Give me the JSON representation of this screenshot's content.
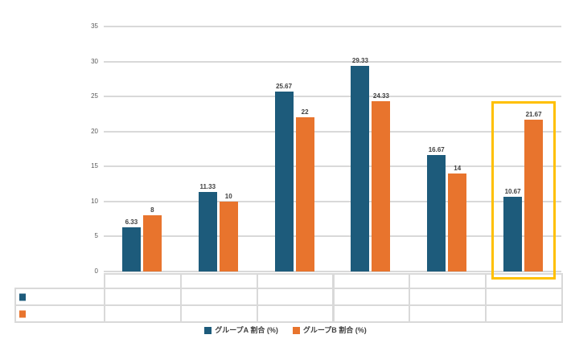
{
  "chart_data": {
    "type": "bar",
    "title": "",
    "categories": [
      "",
      "",
      "",
      "",
      "",
      ""
    ],
    "series": [
      {
        "name": "グループA 割合 (%)",
        "color": "#1d5b7b",
        "values": [
          6.33,
          11.33,
          25.67,
          29.33,
          16.67,
          10.67
        ],
        "labels": [
          "6.33",
          "11.33",
          "25.67",
          "29.33",
          "16.67",
          "10.67"
        ]
      },
      {
        "name": "グループB 割合 (%)",
        "color": "#e8742d",
        "values": [
          8,
          10,
          22,
          24.33,
          14,
          21.67
        ],
        "labels": [
          "8",
          "10",
          "22",
          "24.33",
          "14",
          "21.67"
        ]
      }
    ],
    "ylim": [
      0,
      35
    ],
    "yticks": [
      "35",
      "30",
      "25",
      "20",
      "15",
      "10",
      "5",
      "0"
    ],
    "grid": true,
    "legend_position": "bottom",
    "highlight": {
      "group_index": 5,
      "color": "#ffc000"
    },
    "data_table": {
      "shown": true,
      "header_cells": [
        "",
        "",
        "",
        "",
        "",
        ""
      ],
      "row_cells_empty": true
    }
  },
  "legend": {
    "items": [
      {
        "label": "グループA 割合 (%)",
        "color": "#1d5b7b"
      },
      {
        "label": "グループB 割合 (%)",
        "color": "#e8742d"
      }
    ]
  },
  "colors": {
    "background": "#ffffff",
    "gridline": "#d9d9d9",
    "tick_text": "#595959",
    "data_label_text": "#404040",
    "highlight_border": "#ffc000",
    "series_a": "#1d5b7b",
    "series_b": "#e8742d"
  }
}
